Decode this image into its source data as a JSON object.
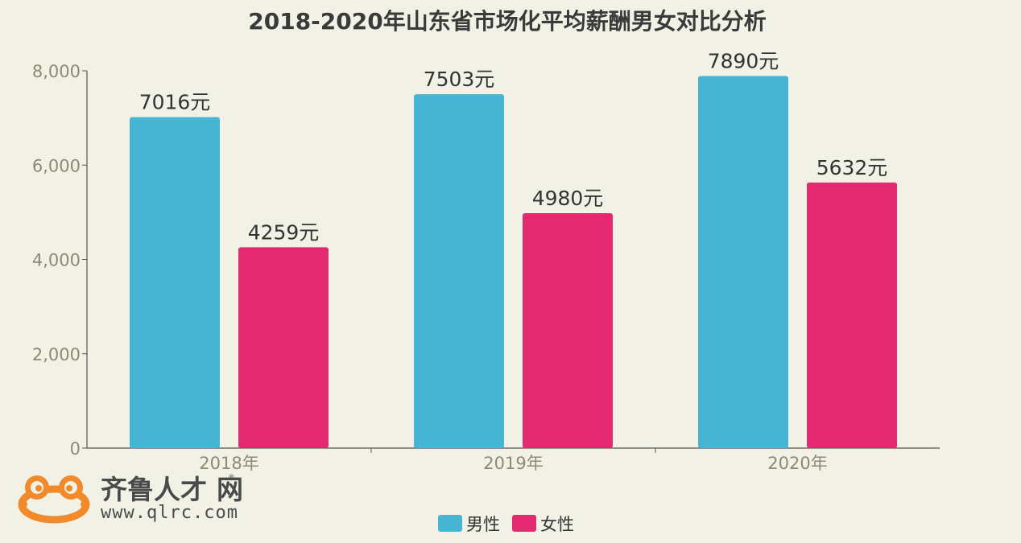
{
  "chart_data": {
    "type": "bar",
    "title": "2018-2020年山东省市场化平均薪酬男女对比分析",
    "categories": [
      "2018年",
      "2019年",
      "2020年"
    ],
    "series": [
      {
        "name": "男性",
        "color": "#45b5d3",
        "values": [
          7016,
          7503,
          7890
        ],
        "labels": [
          "7016元",
          "7503元",
          "7890元"
        ]
      },
      {
        "name": "女性",
        "color": "#e3296f",
        "values": [
          4259,
          4980,
          5632
        ],
        "labels": [
          "4259元",
          "4980元",
          "5632元"
        ]
      }
    ],
    "ylim": [
      0,
      8000
    ],
    "yticks": [
      0,
      2000,
      4000,
      6000,
      8000
    ],
    "ytick_labels": [
      "0",
      "2,000",
      "4,000",
      "6,000",
      "8,000"
    ],
    "xlabel": "",
    "ylabel": "",
    "legend_position": "bottom-center",
    "grid": false
  },
  "watermark": {
    "name": "齐鲁人才",
    "suffix": "网",
    "registered": "®",
    "url": "www.qlrc.com",
    "icon": "frog-logo-icon",
    "color": "#f08a2b"
  }
}
